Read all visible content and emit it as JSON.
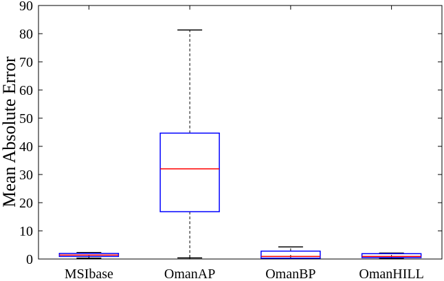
{
  "chart_data": {
    "type": "box",
    "title": "",
    "xlabel": "",
    "ylabel": "Mean Absolute Error",
    "ylim": [
      0,
      90
    ],
    "yticks": [
      0,
      10,
      20,
      30,
      40,
      50,
      60,
      70,
      80,
      90
    ],
    "grid": false,
    "categories": [
      "MSIbase",
      "OmanAP",
      "OmanBP",
      "OmanHILL"
    ],
    "boxes": [
      {
        "name": "MSIbase",
        "min": 0.3,
        "q1": 0.9,
        "median": 1.4,
        "q3": 2.0,
        "max": 2.3
      },
      {
        "name": "OmanAP",
        "min": 0.4,
        "q1": 16.8,
        "median": 32.0,
        "q3": 44.7,
        "max": 81.3
      },
      {
        "name": "OmanBP",
        "min": 0.2,
        "q1": 0.3,
        "median": 0.9,
        "q3": 2.8,
        "max": 4.3
      },
      {
        "name": "OmanHILL",
        "min": 0.2,
        "q1": 0.5,
        "median": 0.9,
        "q3": 1.9,
        "max": 2.1
      }
    ],
    "colors": {
      "box": "#0000ff",
      "median": "#ff0000",
      "whisker": "#000000",
      "axis": "#000000"
    }
  }
}
